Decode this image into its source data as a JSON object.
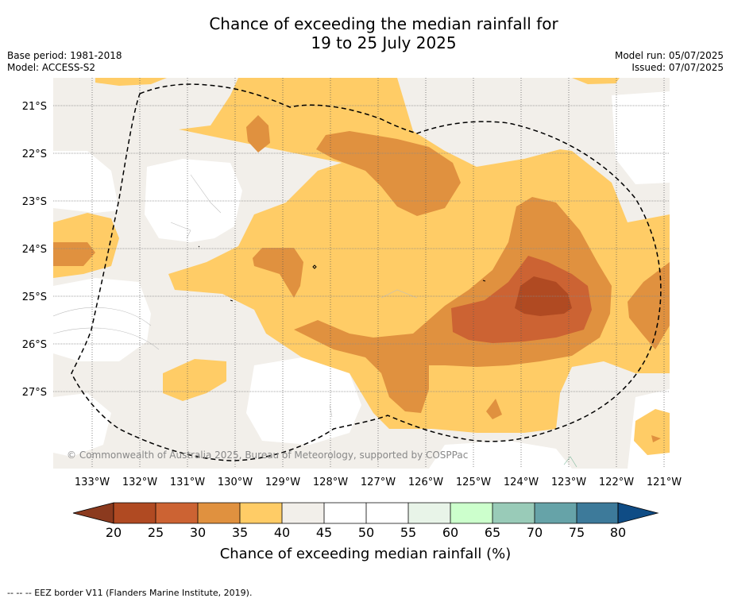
{
  "header": {
    "title_line1": "Chance of exceeding the median rainfall for",
    "title_line2": "19 to 25 July 2025",
    "base_period": "Base period: 1981-2018",
    "model": "Model: ACCESS-S2",
    "model_run": "Model run: 05/07/2025",
    "issued": "Issued: 07/07/2025"
  },
  "map": {
    "lat_labels": [
      "21°S",
      "22°S",
      "23°S",
      "24°S",
      "25°S",
      "26°S",
      "27°S"
    ],
    "lon_labels": [
      "133°W",
      "132°W",
      "131°W",
      "130°W",
      "129°W",
      "128°W",
      "127°W",
      "126°W",
      "125°W",
      "124°W",
      "123°W",
      "122°W",
      "121°W"
    ],
    "credit": "© Commonwealth of Australia 2025, Bureau of Meteorology, supported by COSPPac",
    "boundary": "EEZ border (dashed)"
  },
  "colorbar": {
    "title": "Chance of exceeding median rainfall (%)",
    "ticks": [
      "20",
      "25",
      "30",
      "35",
      "40",
      "45",
      "50",
      "55",
      "60",
      "65",
      "70",
      "75",
      "80"
    ],
    "colors": {
      "below20": "#8b3a1e",
      "20-25": "#b04a22",
      "25-30": "#cc6333",
      "30-35": "#e0913f",
      "35-40": "#ffcc66",
      "40-45": "#f2efea",
      "45-50": "#ffffff",
      "50-55": "#ffffff",
      "55-60": "#e8f4e8",
      "60-65": "#ccffcc",
      "65-70": "#99cbb8",
      "70-75": "#66a3a8",
      "75-80": "#3d7a9a",
      "above80": "#0f4c85"
    }
  },
  "footer": {
    "legend": "--  --  -- EEZ border V11 (Flanders Marine Institute, 2019)."
  }
}
